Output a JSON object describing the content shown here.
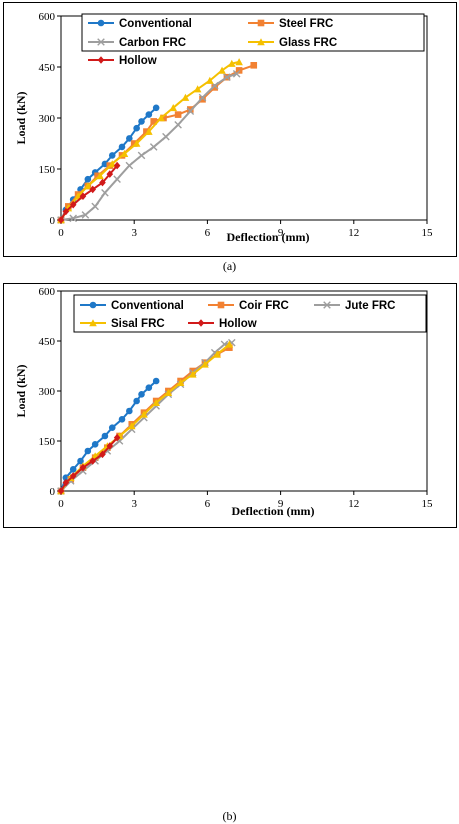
{
  "chart_data": [
    {
      "type": "line",
      "caption": "(a)",
      "xlabel": "Deflection (mm)",
      "ylabel": "Load (kN)",
      "xlim": [
        0,
        15
      ],
      "ylim": [
        0,
        600
      ],
      "xticks": [
        "0",
        "3",
        "6",
        "9",
        "12",
        "15"
      ],
      "yticks": [
        "0",
        "150",
        "300",
        "450",
        "600"
      ],
      "grid": false,
      "legend_position": "top, inside plot",
      "series": [
        {
          "name": "Conventional",
          "color": "#1f78c8",
          "marker": "circle",
          "points": [
            [
              0,
              0
            ],
            [
              0.2,
              30
            ],
            [
              0.5,
              60
            ],
            [
              0.8,
              90
            ],
            [
              1.1,
              120
            ],
            [
              1.4,
              140
            ],
            [
              1.8,
              165
            ],
            [
              2.1,
              190
            ],
            [
              2.5,
              215
            ],
            [
              2.8,
              240
            ],
            [
              3.1,
              270
            ],
            [
              3.3,
              290
            ],
            [
              3.6,
              310
            ],
            [
              3.9,
              330
            ]
          ]
        },
        {
          "name": "Steel FRC",
          "color": "#f28132",
          "marker": "square",
          "points": [
            [
              0,
              0
            ],
            [
              0.3,
              40
            ],
            [
              0.7,
              75
            ],
            [
              1.1,
              100
            ],
            [
              1.5,
              130
            ],
            [
              2.0,
              160
            ],
            [
              2.5,
              190
            ],
            [
              3.0,
              225
            ],
            [
              3.5,
              260
            ],
            [
              3.8,
              290
            ],
            [
              4.2,
              300
            ],
            [
              4.8,
              310
            ],
            [
              5.3,
              325
            ],
            [
              5.8,
              355
            ],
            [
              6.3,
              390
            ],
            [
              6.8,
              420
            ],
            [
              7.3,
              440
            ],
            [
              7.9,
              455
            ]
          ]
        },
        {
          "name": "Carbon FRC",
          "color": "#9e9e9e",
          "marker": "x",
          "points": [
            [
              0,
              0
            ],
            [
              0.5,
              5
            ],
            [
              1.0,
              15
            ],
            [
              1.4,
              40
            ],
            [
              1.8,
              80
            ],
            [
              2.3,
              120
            ],
            [
              2.8,
              160
            ],
            [
              3.3,
              190
            ],
            [
              3.8,
              215
            ],
            [
              4.3,
              245
            ],
            [
              4.8,
              280
            ],
            [
              5.3,
              320
            ],
            [
              5.8,
              360
            ],
            [
              6.3,
              395
            ],
            [
              6.8,
              420
            ],
            [
              7.2,
              430
            ]
          ]
        },
        {
          "name": "Glass FRC",
          "color": "#f5c000",
          "marker": "triangle",
          "points": [
            [
              0,
              0
            ],
            [
              0.3,
              35
            ],
            [
              0.7,
              70
            ],
            [
              1.1,
              100
            ],
            [
              1.6,
              130
            ],
            [
              2.1,
              165
            ],
            [
              2.6,
              195
            ],
            [
              3.1,
              225
            ],
            [
              3.6,
              260
            ],
            [
              4.1,
              300
            ],
            [
              4.6,
              330
            ],
            [
              5.1,
              360
            ],
            [
              5.6,
              385
            ],
            [
              6.1,
              410
            ],
            [
              6.6,
              440
            ],
            [
              7.0,
              460
            ],
            [
              7.3,
              465
            ]
          ]
        },
        {
          "name": "Hollow",
          "color": "#d11a1a",
          "marker": "diamond",
          "points": [
            [
              0,
              0
            ],
            [
              0.2,
              25
            ],
            [
              0.5,
              45
            ],
            [
              0.9,
              70
            ],
            [
              1.3,
              90
            ],
            [
              1.7,
              110
            ],
            [
              2.0,
              135
            ],
            [
              2.3,
              160
            ]
          ]
        }
      ]
    },
    {
      "type": "line",
      "caption": "(b)",
      "xlabel": "Deflection (mm)",
      "ylabel": "Load (kN)",
      "xlim": [
        0,
        15
      ],
      "ylim": [
        0,
        600
      ],
      "xticks": [
        "0",
        "3",
        "6",
        "9",
        "12",
        "15"
      ],
      "yticks": [
        "0",
        "150",
        "300",
        "450",
        "600"
      ],
      "grid": false,
      "legend_position": "top, inside plot",
      "series": [
        {
          "name": "Conventional",
          "color": "#1f78c8",
          "marker": "circle",
          "points": [
            [
              0,
              0
            ],
            [
              0.2,
              40
            ],
            [
              0.5,
              65
            ],
            [
              0.8,
              90
            ],
            [
              1.1,
              120
            ],
            [
              1.4,
              140
            ],
            [
              1.8,
              165
            ],
            [
              2.1,
              190
            ],
            [
              2.5,
              215
            ],
            [
              2.8,
              240
            ],
            [
              3.1,
              270
            ],
            [
              3.3,
              290
            ],
            [
              3.6,
              310
            ],
            [
              3.9,
              330
            ]
          ]
        },
        {
          "name": "Coir FRC",
          "color": "#f28132",
          "marker": "square",
          "points": [
            [
              0,
              0
            ],
            [
              0.4,
              35
            ],
            [
              0.9,
              70
            ],
            [
              1.4,
              100
            ],
            [
              1.9,
              130
            ],
            [
              2.4,
              165
            ],
            [
              2.9,
              200
            ],
            [
              3.4,
              235
            ],
            [
              3.9,
              270
            ],
            [
              4.4,
              300
            ],
            [
              4.9,
              330
            ],
            [
              5.4,
              360
            ],
            [
              5.9,
              385
            ],
            [
              6.4,
              410
            ],
            [
              6.9,
              430
            ]
          ]
        },
        {
          "name": "Jute FRC",
          "color": "#9e9e9e",
          "marker": "x",
          "points": [
            [
              0,
              0
            ],
            [
              0.4,
              30
            ],
            [
              0.9,
              60
            ],
            [
              1.4,
              90
            ],
            [
              1.9,
              120
            ],
            [
              2.4,
              150
            ],
            [
              2.9,
              185
            ],
            [
              3.4,
              220
            ],
            [
              3.9,
              255
            ],
            [
              4.4,
              290
            ],
            [
              4.9,
              320
            ],
            [
              5.4,
              355
            ],
            [
              5.9,
              385
            ],
            [
              6.3,
              415
            ],
            [
              6.7,
              440
            ],
            [
              7.0,
              445
            ]
          ]
        },
        {
          "name": "Sisal FRC",
          "color": "#f5c000",
          "marker": "triangle",
          "points": [
            [
              0,
              0
            ],
            [
              0.4,
              40
            ],
            [
              0.9,
              75
            ],
            [
              1.4,
              105
            ],
            [
              1.9,
              135
            ],
            [
              2.4,
              165
            ],
            [
              2.9,
              195
            ],
            [
              3.4,
              230
            ],
            [
              3.9,
              265
            ],
            [
              4.4,
              295
            ],
            [
              4.9,
              325
            ],
            [
              5.4,
              350
            ],
            [
              5.9,
              380
            ],
            [
              6.4,
              410
            ],
            [
              6.9,
              440
            ]
          ]
        },
        {
          "name": "Hollow",
          "color": "#d11a1a",
          "marker": "diamond",
          "points": [
            [
              0,
              0
            ],
            [
              0.2,
              25
            ],
            [
              0.5,
              45
            ],
            [
              0.9,
              70
            ],
            [
              1.3,
              90
            ],
            [
              1.7,
              110
            ],
            [
              2.0,
              135
            ],
            [
              2.3,
              160
            ]
          ]
        }
      ]
    }
  ]
}
